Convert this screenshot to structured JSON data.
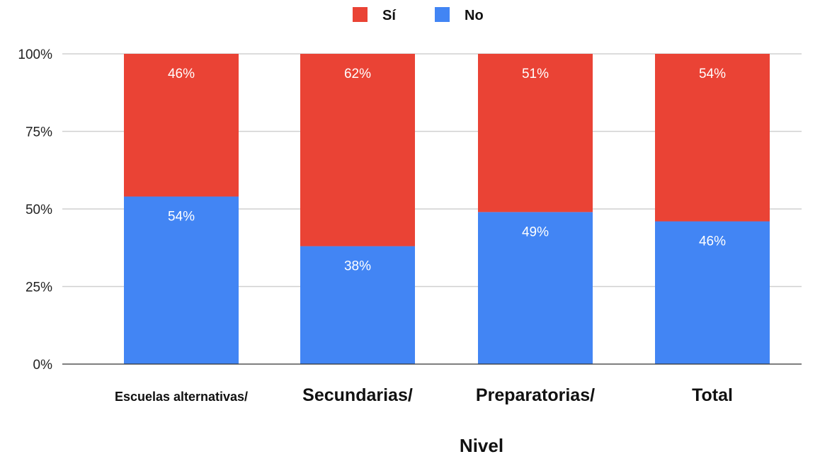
{
  "chart_data": {
    "type": "bar",
    "stacked": true,
    "percent": true,
    "title": "",
    "xlabel": "Nivel",
    "ylabel": "",
    "ylim": [
      0,
      100
    ],
    "yticks": [
      "0%",
      "25%",
      "50%",
      "75%",
      "100%"
    ],
    "grid": true,
    "legend_position": "top",
    "categories": [
      "Escuelas alternativas/",
      "Secundarias/",
      "Preparatorias/",
      "Total"
    ],
    "series": [
      {
        "name": "No",
        "color": "#4285f4",
        "values": [
          54,
          38,
          49,
          46
        ],
        "labels": [
          "54%",
          "38%",
          "49%",
          "46%"
        ]
      },
      {
        "name": "Sí",
        "color": "#ea4335",
        "values": [
          46,
          62,
          51,
          54
        ],
        "labels": [
          "46%",
          "62%",
          "51%",
          "54%"
        ]
      }
    ],
    "legend": [
      {
        "name": "Sí",
        "color": "#ea4335"
      },
      {
        "name": "No",
        "color": "#4285f4"
      }
    ]
  }
}
